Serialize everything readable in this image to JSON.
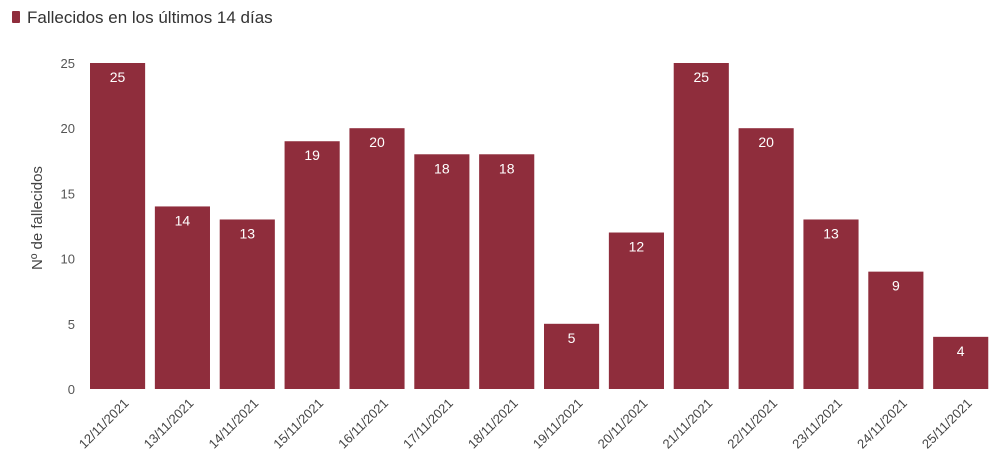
{
  "chart_data": {
    "type": "bar",
    "legend": "Fallecidos en los últimos 14 días",
    "legend_position": "top-left",
    "ylabel": "Nº de fallecidos",
    "xlabel": "",
    "ylim": [
      0,
      25
    ],
    "yticks": [
      "0",
      "5",
      "10",
      "15",
      "20",
      "25"
    ],
    "grid": false,
    "bar_color": "#8f2d3c",
    "categories": [
      "12/11/2021",
      "13/11/2021",
      "14/11/2021",
      "15/11/2021",
      "16/11/2021",
      "17/11/2021",
      "18/11/2021",
      "19/11/2021",
      "20/11/2021",
      "21/11/2021",
      "22/11/2021",
      "23/11/2021",
      "24/11/2021",
      "25/11/2021"
    ],
    "values": [
      25,
      14,
      13,
      19,
      20,
      18,
      18,
      5,
      12,
      25,
      20,
      13,
      9,
      4
    ]
  }
}
